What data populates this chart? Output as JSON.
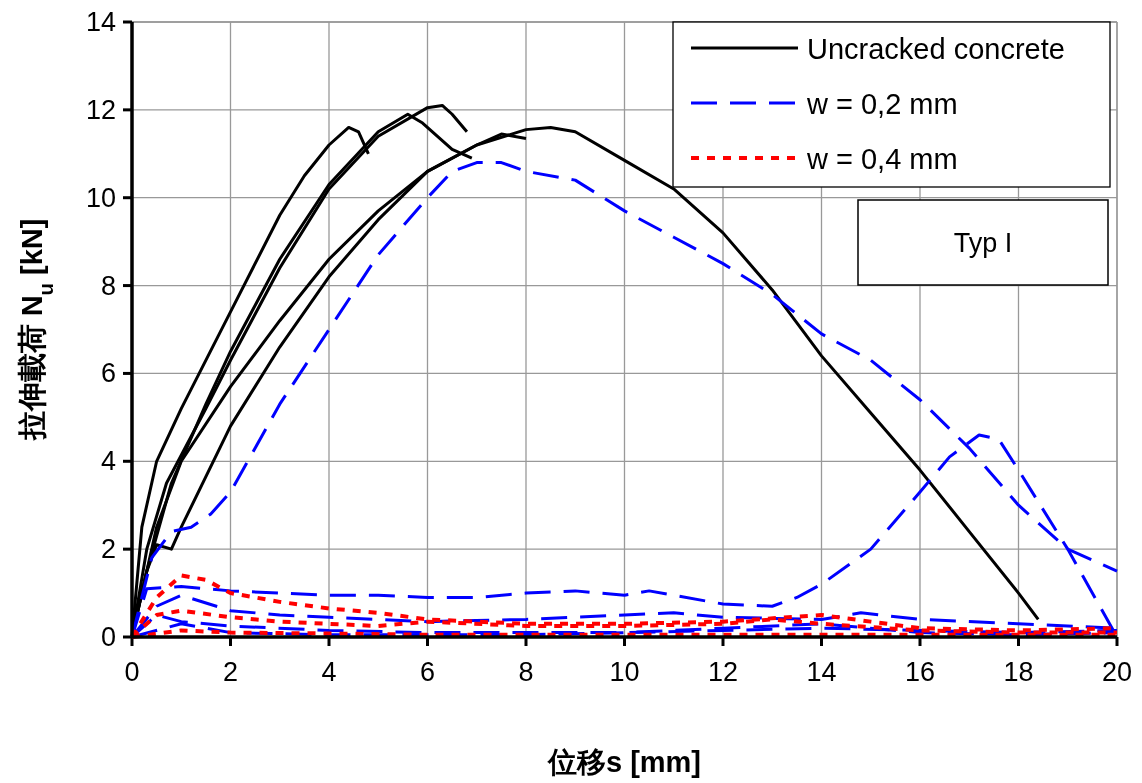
{
  "chart_data": {
    "type": "line",
    "xlabel": "**位移s [mm]**",
    "ylabel": "**拉伸載荷 N$_{u}$ [kN]**",
    "xlim": [
      0,
      20
    ],
    "ylim": [
      0,
      14
    ],
    "xticks": [
      0,
      2,
      4,
      6,
      8,
      10,
      12,
      14,
      16,
      18,
      20
    ],
    "yticks": [
      0,
      2,
      4,
      6,
      8,
      10,
      12,
      14
    ],
    "grid": true,
    "legend": "top right",
    "annotations": [
      "Typ I"
    ],
    "series": [
      {
        "name": "Uncracked concrete",
        "color": "#000000",
        "line_style": "solid",
        "x": [
          0,
          0.2,
          0.5,
          1,
          2,
          3,
          3.5,
          4,
          4.4,
          4.6,
          4.8
        ],
        "values": [
          0,
          2.5,
          4,
          5.2,
          7.4,
          9.6,
          10.5,
          11.2,
          11.6,
          11.5,
          11.0
        ]
      },
      {
        "color": "#000000",
        "line_style": "solid",
        "x": [
          0,
          0.3,
          0.7,
          1.5,
          2,
          3,
          4,
          5,
          6,
          6.3,
          6.5,
          6.8
        ],
        "values": [
          0,
          2,
          3.5,
          5.2,
          6.3,
          8.4,
          10.2,
          11.4,
          12.05,
          12.1,
          11.9,
          11.5
        ]
      },
      {
        "color": "#000000",
        "line_style": "solid",
        "x": [
          0,
          0.3,
          0.8,
          1.5,
          2,
          3,
          4,
          5,
          5.6,
          5.9,
          6.5,
          6.9
        ],
        "values": [
          0,
          1.5,
          3.5,
          5.3,
          6.5,
          8.6,
          10.3,
          11.5,
          11.9,
          11.7,
          11.1,
          10.9
        ]
      },
      {
        "color": "#000000",
        "line_style": "solid",
        "x": [
          0,
          0.5,
          1,
          2,
          3,
          4,
          5,
          6,
          7,
          8,
          8.5,
          9,
          10,
          11,
          12,
          13,
          14,
          15,
          16,
          17,
          18,
          18.4
        ],
        "values": [
          0,
          2.5,
          4,
          5.7,
          7.2,
          8.6,
          9.7,
          10.6,
          11.2,
          11.55,
          11.6,
          11.5,
          10.85,
          10.2,
          9.2,
          7.9,
          6.4,
          5.1,
          3.8,
          2.4,
          1.0,
          0.4
        ]
      },
      {
        "color": "#000000",
        "line_style": "solid",
        "x": [
          0,
          0.3,
          0.5,
          0.8,
          1,
          2,
          3,
          4,
          5,
          6,
          7,
          7.5,
          8
        ],
        "values": [
          0,
          1.5,
          2.1,
          2.0,
          2.5,
          4.8,
          6.6,
          8.2,
          9.5,
          10.6,
          11.2,
          11.45,
          11.35
        ]
      },
      {
        "name": "w = 0,2 mm",
        "color": "#0000ff",
        "line_style": "dashed",
        "x": [
          0,
          0.4,
          0.8,
          1.2,
          1.6,
          2,
          3,
          4,
          5,
          6,
          6.5,
          7,
          7.5,
          8,
          9,
          10,
          11,
          12,
          13,
          14,
          15,
          16,
          17,
          18,
          19,
          20
        ],
        "values": [
          0,
          1.8,
          2.4,
          2.5,
          2.8,
          3.3,
          5.3,
          7.0,
          8.7,
          10.0,
          10.6,
          10.8,
          10.8,
          10.6,
          10.4,
          9.7,
          9.1,
          8.5,
          7.8,
          6.9,
          6.3,
          5.4,
          4.3,
          3.0,
          2.0,
          1.5
        ]
      },
      {
        "color": "#0000ff",
        "line_style": "dashed",
        "x": [
          0,
          0.3,
          1,
          2,
          3,
          4,
          5,
          6,
          7,
          8,
          9,
          10,
          10.5,
          11,
          12,
          13,
          13.5,
          14,
          15,
          16,
          16.6,
          17.2,
          17.6,
          18,
          19,
          20
        ],
        "values": [
          0,
          1.1,
          1.15,
          1.05,
          1.0,
          0.95,
          0.95,
          0.9,
          0.9,
          1.0,
          1.05,
          0.95,
          1.05,
          0.95,
          0.75,
          0.7,
          0.9,
          1.2,
          2.0,
          3.3,
          4.1,
          4.6,
          4.5,
          3.8,
          2.0,
          0.0
        ]
      },
      {
        "color": "#0000ff",
        "line_style": "dashed",
        "x": [
          0,
          0.5,
          1,
          2,
          3,
          4,
          6,
          8,
          10,
          11,
          12,
          14,
          14.8,
          16,
          18,
          20
        ],
        "values": [
          0,
          0.7,
          0.95,
          0.6,
          0.5,
          0.45,
          0.35,
          0.4,
          0.5,
          0.55,
          0.45,
          0.4,
          0.55,
          0.4,
          0.3,
          0.2
        ]
      },
      {
        "color": "#0000ff",
        "line_style": "dashed",
        "x": [
          0,
          0.5,
          1,
          2,
          4,
          6,
          8,
          10,
          12,
          14,
          16,
          18,
          20
        ],
        "values": [
          0,
          0.5,
          0.35,
          0.25,
          0.15,
          0.1,
          0.1,
          0.1,
          0.15,
          0.2,
          0.15,
          0.1,
          0.15
        ]
      },
      {
        "color": "#0000ff",
        "line_style": "dashed",
        "x": [
          0,
          1,
          2,
          4,
          6,
          8,
          10,
          12,
          14,
          16,
          18,
          20
        ],
        "values": [
          0,
          0.3,
          0.1,
          0.05,
          0.05,
          0.05,
          0.1,
          0.2,
          0.3,
          0.1,
          0.05,
          0.1
        ]
      },
      {
        "name": "w = 0,4 mm",
        "color": "#ff0000",
        "line_style": "dotted",
        "x": [
          0,
          0.5,
          1,
          1.5,
          2,
          3,
          4,
          5,
          6,
          7,
          8,
          9,
          10,
          12,
          14,
          15,
          16,
          18,
          20
        ],
        "values": [
          0,
          0.9,
          1.4,
          1.3,
          1.0,
          0.8,
          0.65,
          0.55,
          0.4,
          0.35,
          0.3,
          0.3,
          0.3,
          0.35,
          0.5,
          0.35,
          0.2,
          0.15,
          0.2
        ]
      },
      {
        "color": "#ff0000",
        "line_style": "dotted",
        "x": [
          0,
          0.5,
          1,
          2,
          3,
          4,
          5,
          6,
          8,
          10,
          12,
          13,
          14,
          16,
          18,
          20
        ],
        "values": [
          0,
          0.5,
          0.6,
          0.45,
          0.35,
          0.3,
          0.25,
          0.35,
          0.25,
          0.25,
          0.3,
          0.4,
          0.3,
          0.15,
          0.1,
          0.1
        ]
      },
      {
        "color": "#ff0000",
        "line_style": "dotted",
        "x": [
          0,
          1,
          2,
          4,
          6,
          8,
          10,
          12,
          14,
          16,
          18,
          20
        ],
        "values": [
          0,
          0.15,
          0.1,
          0.08,
          0.05,
          0.05,
          0.05,
          0.05,
          0.05,
          0.05,
          0.05,
          0.05
        ]
      }
    ]
  }
}
